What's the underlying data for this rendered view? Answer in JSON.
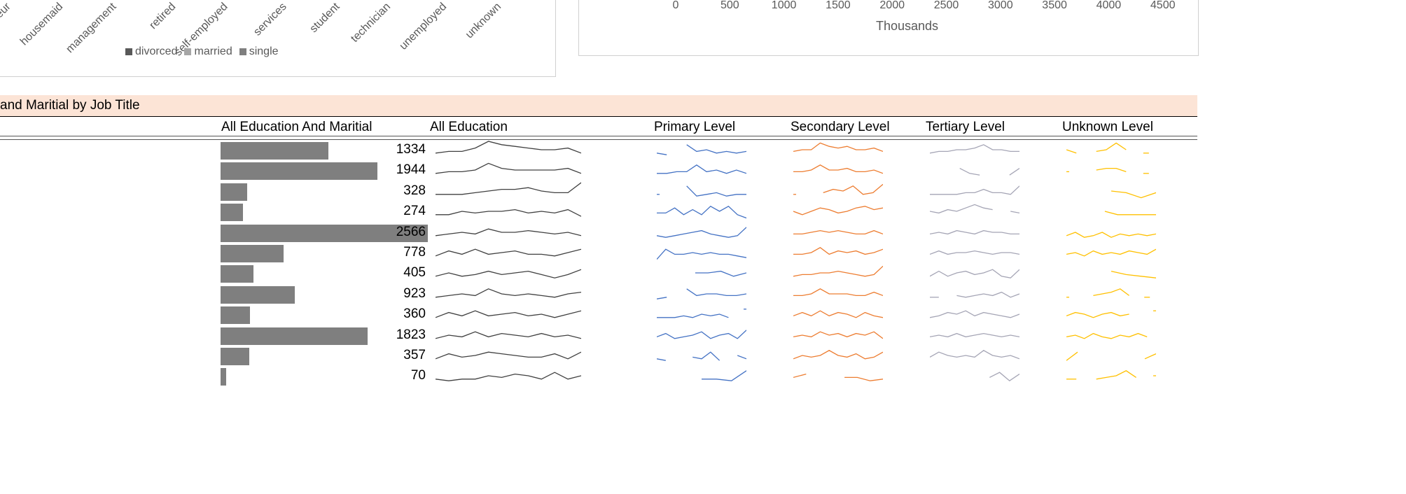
{
  "left_chart": {
    "categories": [
      "entrepreneur",
      "housemaid",
      "management",
      "retired",
      "self-employed",
      "services",
      "student",
      "technician",
      "unemployed",
      "unknown"
    ],
    "legend": [
      {
        "label": "divorced",
        "color": "#595959"
      },
      {
        "label": "married",
        "color": "#a6a6a6"
      },
      {
        "label": "single",
        "color": "#7f7f7f"
      }
    ]
  },
  "right_chart": {
    "x_ticks": [
      "0",
      "500",
      "1000",
      "1500",
      "2000",
      "2500",
      "3000",
      "3500",
      "4000",
      "4500"
    ],
    "x_title": "Thousands"
  },
  "table": {
    "title": "and Maritial by Job Title",
    "headers": {
      "all": "All Education And Maritial",
      "all_edu": "All Education",
      "primary": "Primary Level",
      "secondary": "Secondary Level",
      "tertiary": "Tertiary Level",
      "unknown": "Unknown Level"
    },
    "max_value": 2566,
    "colors": {
      "bar": "#7f7f7f",
      "all_edu": "#404040",
      "primary": "#4472c4",
      "secondary": "#ed7d31",
      "tertiary": "#a5a5b5",
      "unknown": "#ffc000"
    },
    "rows": [
      {
        "value": "1334",
        "n": 1334,
        "all": [
          3,
          4,
          4,
          6,
          10,
          8,
          7,
          6,
          5,
          5,
          6,
          3
        ],
        "primary": [
          3,
          2,
          null,
          8,
          4,
          5,
          3,
          4,
          3,
          4
        ],
        "secondary": [
          4,
          5,
          5,
          9,
          7,
          6,
          7,
          5,
          5,
          6,
          4
        ],
        "tertiary": [
          3,
          4,
          4,
          5,
          5,
          6,
          8,
          5,
          5,
          4,
          4
        ],
        "unknown": [
          5,
          3,
          null,
          4,
          5,
          9,
          5,
          null,
          3,
          null
        ]
      },
      {
        "value": "1944",
        "n": 1944,
        "all": [
          3,
          4,
          4,
          5,
          9,
          6,
          5,
          5,
          5,
          5,
          6,
          3
        ],
        "primary": [
          3,
          3,
          4,
          4,
          8,
          4,
          5,
          3,
          5,
          3
        ],
        "secondary": [
          4,
          4,
          5,
          8,
          5,
          5,
          6,
          4,
          4,
          5,
          3
        ],
        "tertiary": [
          null,
          null,
          null,
          6,
          3,
          2,
          null,
          null,
          2,
          6
        ],
        "unknown": [
          4,
          null,
          null,
          5,
          6,
          6,
          4,
          null,
          3,
          null
        ]
      },
      {
        "value": "328",
        "n": 328,
        "all": [
          3,
          3,
          3,
          4,
          5,
          6,
          6,
          7,
          5,
          4,
          4,
          10
        ],
        "primary": [
          3,
          null,
          null,
          8,
          2,
          3,
          4,
          2,
          3,
          3
        ],
        "secondary": [
          3,
          null,
          null,
          4,
          6,
          5,
          8,
          3,
          4,
          9
        ],
        "tertiary": [
          3,
          3,
          3,
          3,
          4,
          4,
          6,
          4,
          4,
          3,
          8
        ],
        "unknown": [
          null,
          null,
          null,
          5,
          4,
          1,
          4
        ]
      },
      {
        "value": "274",
        "n": 274,
        "all": [
          3,
          3,
          5,
          4,
          5,
          5,
          6,
          4,
          5,
          4,
          6,
          2
        ],
        "primary": [
          4,
          4,
          7,
          3,
          6,
          3,
          8,
          5,
          8,
          3,
          1
        ],
        "secondary": [
          5,
          3,
          5,
          7,
          6,
          4,
          5,
          7,
          8,
          6,
          7
        ],
        "tertiary": [
          5,
          4,
          6,
          5,
          7,
          9,
          7,
          6,
          null,
          5,
          4
        ],
        "unknown": [
          null,
          null,
          null,
          5,
          3,
          3,
          3,
          3
        ]
      },
      {
        "value": "2566",
        "n": 2566,
        "all": [
          3,
          4,
          5,
          4,
          7,
          5,
          5,
          6,
          5,
          4,
          5,
          3
        ],
        "primary": [
          3,
          2,
          3,
          4,
          5,
          6,
          4,
          3,
          2,
          3,
          8
        ],
        "secondary": [
          4,
          4,
          5,
          6,
          5,
          6,
          5,
          4,
          4,
          6,
          4
        ],
        "tertiary": [
          4,
          5,
          4,
          6,
          5,
          4,
          6,
          5,
          5,
          4,
          4
        ],
        "unknown": [
          3,
          5,
          2,
          3,
          5,
          2,
          4,
          3,
          4,
          3,
          4
        ]
      },
      {
        "value": "778",
        "n": 778,
        "all": [
          3,
          6,
          4,
          7,
          4,
          5,
          6,
          4,
          4,
          3,
          5,
          7
        ],
        "primary": [
          1,
          7,
          4,
          4,
          5,
          4,
          5,
          4,
          4,
          3,
          2
        ],
        "secondary": [
          4,
          4,
          5,
          8,
          4,
          6,
          5,
          6,
          4,
          5,
          7
        ],
        "tertiary": [
          4,
          6,
          4,
          5,
          5,
          6,
          5,
          4,
          5,
          5,
          4
        ],
        "unknown": [
          4,
          5,
          3,
          6,
          4,
          5,
          4,
          6,
          5,
          4,
          7
        ]
      },
      {
        "value": "405",
        "n": 405,
        "all": [
          3,
          5,
          3,
          4,
          6,
          4,
          5,
          6,
          4,
          2,
          4,
          7
        ],
        "primary": [
          null,
          null,
          null,
          5,
          5,
          6,
          3,
          5
        ],
        "secondary": [
          3,
          4,
          4,
          5,
          5,
          6,
          5,
          4,
          3,
          4,
          9
        ],
        "tertiary": [
          3,
          6,
          3,
          5,
          6,
          4,
          5,
          7,
          3,
          2,
          7
        ],
        "unknown": [
          null,
          null,
          null,
          6,
          4,
          3,
          2
        ]
      },
      {
        "value": "923",
        "n": 923,
        "all": [
          3,
          4,
          5,
          4,
          8,
          5,
          4,
          5,
          4,
          3,
          5,
          6
        ],
        "primary": [
          2,
          3,
          null,
          8,
          4,
          5,
          5,
          4,
          4,
          5
        ],
        "secondary": [
          4,
          4,
          5,
          8,
          5,
          5,
          5,
          4,
          4,
          6,
          4
        ],
        "tertiary": [
          3,
          3,
          null,
          4,
          3,
          4,
          5,
          4,
          6,
          3,
          5
        ],
        "unknown": [
          3,
          null,
          null,
          4,
          5,
          6,
          8,
          4,
          null,
          3,
          null
        ]
      },
      {
        "value": "360",
        "n": 360,
        "all": [
          3,
          6,
          4,
          7,
          4,
          5,
          6,
          4,
          5,
          3,
          5,
          7
        ],
        "primary": [
          3,
          3,
          3,
          4,
          3,
          5,
          4,
          5,
          3,
          null,
          8
        ],
        "secondary": [
          4,
          6,
          4,
          7,
          4,
          6,
          5,
          3,
          6,
          4,
          3
        ],
        "tertiary": [
          3,
          4,
          6,
          5,
          7,
          4,
          6,
          5,
          4,
          3,
          5
        ],
        "unknown": [
          4,
          6,
          5,
          3,
          5,
          6,
          4,
          5,
          null,
          null,
          7
        ]
      },
      {
        "value": "1823",
        "n": 1823,
        "all": [
          3,
          5,
          4,
          7,
          4,
          6,
          5,
          4,
          6,
          4,
          5,
          3
        ],
        "primary": [
          4,
          6,
          3,
          4,
          5,
          7,
          3,
          5,
          6,
          3,
          8
        ],
        "secondary": [
          4,
          5,
          4,
          7,
          5,
          6,
          4,
          6,
          5,
          7,
          3
        ],
        "tertiary": [
          4,
          5,
          4,
          6,
          4,
          5,
          6,
          5,
          4,
          5,
          4
        ],
        "unknown": [
          4,
          5,
          3,
          6,
          4,
          3,
          5,
          4,
          6,
          4,
          null
        ]
      },
      {
        "value": "357",
        "n": 357,
        "all": [
          3,
          6,
          4,
          5,
          7,
          6,
          5,
          4,
          4,
          6,
          3,
          7
        ],
        "primary": [
          3,
          2,
          null,
          null,
          4,
          3,
          7,
          2,
          null,
          5,
          3
        ],
        "secondary": [
          3,
          5,
          4,
          5,
          8,
          5,
          4,
          6,
          3,
          4,
          7
        ],
        "tertiary": [
          4,
          7,
          5,
          4,
          5,
          4,
          8,
          5,
          4,
          5,
          3
        ],
        "unknown": [
          2,
          7,
          null,
          null,
          null,
          null,
          null,
          3,
          6
        ]
      },
      {
        "value": "70",
        "n": 70,
        "all": [
          3,
          2,
          3,
          3,
          5,
          4,
          6,
          5,
          3,
          7,
          3,
          5
        ],
        "primary": [
          null,
          null,
          null,
          3,
          3,
          2,
          8
        ],
        "secondary": [
          4,
          6,
          null,
          null,
          4,
          4,
          2,
          3
        ],
        "tertiary": [
          null,
          null,
          null,
          null,
          null,
          null,
          4,
          7,
          2,
          6
        ],
        "unknown": [
          3,
          3,
          null,
          3,
          4,
          5,
          8,
          4,
          null,
          5
        ]
      }
    ]
  }
}
